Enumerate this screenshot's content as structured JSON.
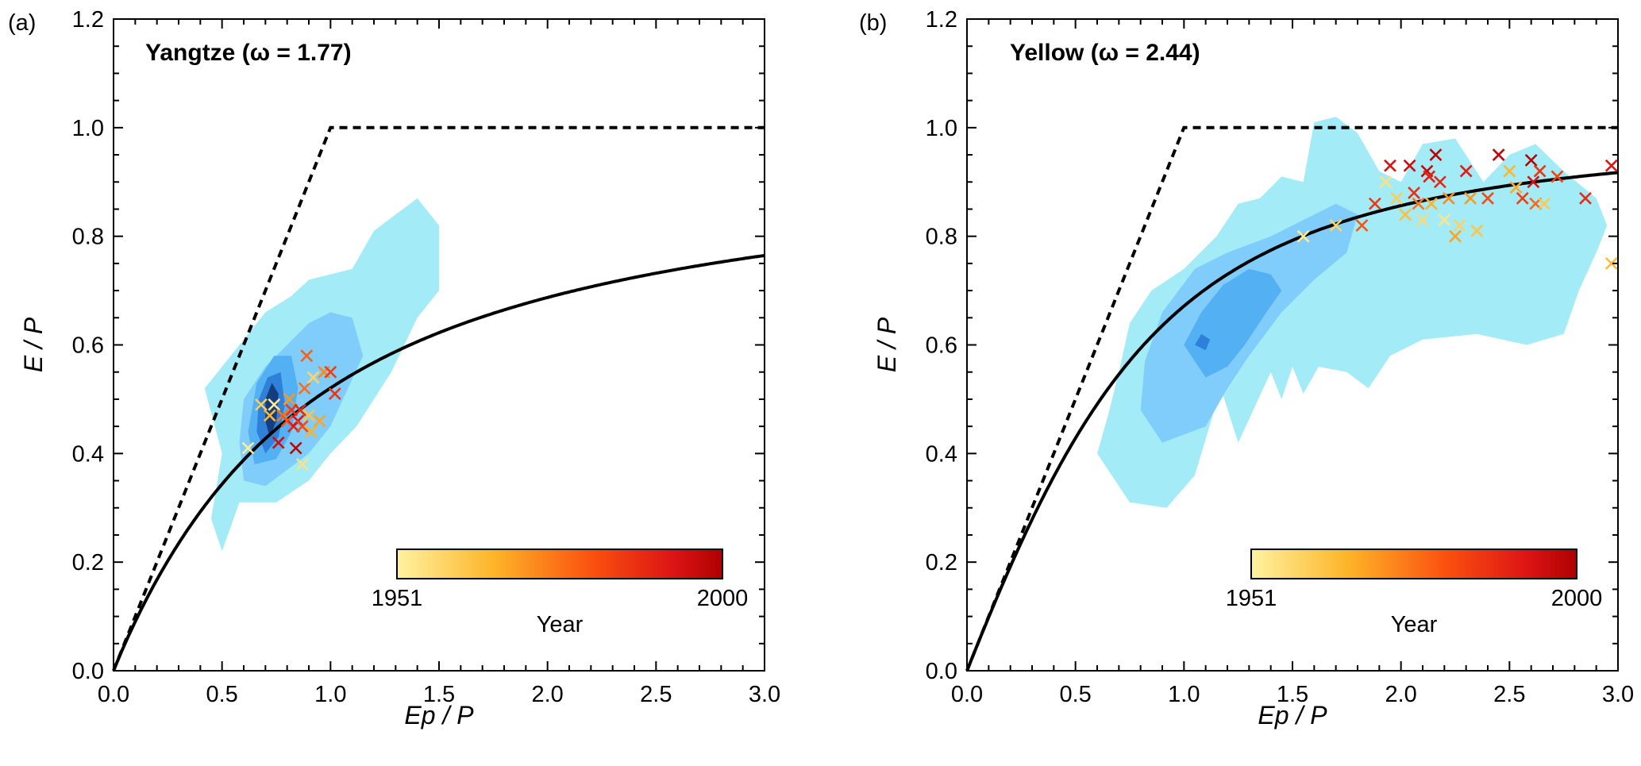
{
  "chart_data": [
    {
      "type": "scatter",
      "panel_label": "(a)",
      "title": "Yangtze (ω = 1.77)",
      "xlabel": "Ep / P",
      "ylabel": "E / P",
      "xlim": [
        0,
        3.0
      ],
      "ylim": [
        0,
        1.2
      ],
      "xticks": [
        "0.0",
        "0.5",
        "1.0",
        "1.5",
        "2.0",
        "2.5",
        "3.0"
      ],
      "yticks": [
        "0.0",
        "0.2",
        "0.4",
        "0.6",
        "0.8",
        "1.0",
        "1.2"
      ],
      "omega": 1.77,
      "colorbar": {
        "label": "Year",
        "min_label": "1951",
        "max_label": "2000",
        "min": 1951,
        "max": 2000
      },
      "density_contours": [
        {
          "level": 1,
          "color": "#a3ecf7",
          "points": [
            [
              0.42,
              0.52
            ],
            [
              0.5,
              0.4
            ],
            [
              0.45,
              0.28
            ],
            [
              0.5,
              0.22
            ],
            [
              0.58,
              0.31
            ],
            [
              0.75,
              0.31
            ],
            [
              0.9,
              0.35
            ],
            [
              1.0,
              0.4
            ],
            [
              1.12,
              0.45
            ],
            [
              1.28,
              0.55
            ],
            [
              1.4,
              0.65
            ],
            [
              1.5,
              0.7
            ],
            [
              1.5,
              0.82
            ],
            [
              1.4,
              0.87
            ],
            [
              1.3,
              0.84
            ],
            [
              1.2,
              0.81
            ],
            [
              1.1,
              0.74
            ],
            [
              0.9,
              0.72
            ],
            [
              0.82,
              0.69
            ],
            [
              0.7,
              0.66
            ],
            [
              0.6,
              0.61
            ],
            [
              0.5,
              0.56
            ]
          ]
        },
        {
          "level": 2,
          "color": "#80ccfa",
          "points": [
            [
              0.58,
              0.42
            ],
            [
              0.6,
              0.35
            ],
            [
              0.7,
              0.34
            ],
            [
              0.8,
              0.37
            ],
            [
              0.9,
              0.4
            ],
            [
              1.0,
              0.45
            ],
            [
              1.08,
              0.52
            ],
            [
              1.15,
              0.58
            ],
            [
              1.1,
              0.65
            ],
            [
              1.0,
              0.66
            ],
            [
              0.9,
              0.64
            ],
            [
              0.8,
              0.6
            ],
            [
              0.7,
              0.56
            ],
            [
              0.6,
              0.5
            ]
          ]
        },
        {
          "level": 3,
          "color": "#53b0f2",
          "points": [
            [
              0.62,
              0.44
            ],
            [
              0.65,
              0.38
            ],
            [
              0.75,
              0.39
            ],
            [
              0.82,
              0.44
            ],
            [
              0.85,
              0.52
            ],
            [
              0.82,
              0.58
            ],
            [
              0.74,
              0.58
            ],
            [
              0.66,
              0.53
            ]
          ]
        },
        {
          "level": 4,
          "color": "#2f80d8",
          "points": [
            [
              0.66,
              0.44
            ],
            [
              0.7,
              0.4
            ],
            [
              0.76,
              0.43
            ],
            [
              0.79,
              0.49
            ],
            [
              0.77,
              0.55
            ],
            [
              0.71,
              0.54
            ],
            [
              0.67,
              0.5
            ]
          ]
        },
        {
          "level": 5,
          "color": "#143d80",
          "points": [
            [
              0.7,
              0.46
            ],
            [
              0.72,
              0.43
            ],
            [
              0.75,
              0.46
            ],
            [
              0.76,
              0.51
            ],
            [
              0.73,
              0.53
            ],
            [
              0.7,
              0.5
            ]
          ]
        }
      ],
      "scatter": [
        {
          "x": 0.62,
          "y": 0.41,
          "year": 1952
        },
        {
          "x": 0.68,
          "y": 0.49,
          "year": 1960
        },
        {
          "x": 0.72,
          "y": 0.47,
          "year": 1965
        },
        {
          "x": 0.74,
          "y": 0.49,
          "year": 1953
        },
        {
          "x": 0.76,
          "y": 0.42,
          "year": 1995
        },
        {
          "x": 0.78,
          "y": 0.47,
          "year": 1975
        },
        {
          "x": 0.8,
          "y": 0.46,
          "year": 1980
        },
        {
          "x": 0.81,
          "y": 0.5,
          "year": 1970
        },
        {
          "x": 0.82,
          "y": 0.48,
          "year": 1985
        },
        {
          "x": 0.83,
          "y": 0.45,
          "year": 1990
        },
        {
          "x": 0.84,
          "y": 0.41,
          "year": 1998
        },
        {
          "x": 0.85,
          "y": 0.46,
          "year": 1993
        },
        {
          "x": 0.86,
          "y": 0.48,
          "year": 1988
        },
        {
          "x": 0.87,
          "y": 0.45,
          "year": 1982
        },
        {
          "x": 0.87,
          "y": 0.38,
          "year": 1955
        },
        {
          "x": 0.88,
          "y": 0.52,
          "year": 1976
        },
        {
          "x": 0.89,
          "y": 0.58,
          "year": 1978
        },
        {
          "x": 0.9,
          "y": 0.47,
          "year": 1962
        },
        {
          "x": 0.91,
          "y": 0.44,
          "year": 1966
        },
        {
          "x": 0.92,
          "y": 0.54,
          "year": 1958
        },
        {
          "x": 0.95,
          "y": 0.46,
          "year": 1968
        },
        {
          "x": 0.97,
          "y": 0.55,
          "year": 1972
        },
        {
          "x": 1.0,
          "y": 0.55,
          "year": 1984
        },
        {
          "x": 1.02,
          "y": 0.51,
          "year": 1986
        }
      ]
    },
    {
      "type": "scatter",
      "panel_label": "(b)",
      "title": "Yellow (ω = 2.44)",
      "xlabel": "Ep / P",
      "ylabel": "E / P",
      "xlim": [
        0,
        3.0
      ],
      "ylim": [
        0,
        1.2
      ],
      "xticks": [
        "0.0",
        "0.5",
        "1.0",
        "1.5",
        "2.0",
        "2.5",
        "3.0"
      ],
      "yticks": [
        "0.0",
        "0.2",
        "0.4",
        "0.6",
        "0.8",
        "1.0",
        "1.2"
      ],
      "omega": 2.44,
      "colorbar": {
        "label": "Year",
        "min_label": "1951",
        "max_label": "2000",
        "min": 1951,
        "max": 2000
      },
      "density_contours": [
        {
          "level": 1,
          "color": "#a3ecf7",
          "points": [
            [
              0.6,
              0.4
            ],
            [
              0.75,
              0.31
            ],
            [
              0.92,
              0.3
            ],
            [
              1.05,
              0.36
            ],
            [
              1.17,
              0.52
            ],
            [
              1.25,
              0.42
            ],
            [
              1.4,
              0.55
            ],
            [
              1.45,
              0.5
            ],
            [
              1.5,
              0.56
            ],
            [
              1.55,
              0.51
            ],
            [
              1.62,
              0.56
            ],
            [
              1.75,
              0.55
            ],
            [
              1.85,
              0.52
            ],
            [
              1.95,
              0.58
            ],
            [
              2.1,
              0.61
            ],
            [
              2.35,
              0.62
            ],
            [
              2.58,
              0.6
            ],
            [
              2.75,
              0.62
            ],
            [
              2.82,
              0.7
            ],
            [
              2.9,
              0.77
            ],
            [
              2.95,
              0.82
            ],
            [
              2.9,
              0.87
            ],
            [
              2.75,
              0.92
            ],
            [
              2.62,
              0.97
            ],
            [
              2.5,
              0.95
            ],
            [
              2.38,
              0.9
            ],
            [
              2.25,
              0.98
            ],
            [
              2.1,
              0.97
            ],
            [
              2.0,
              0.9
            ],
            [
              1.9,
              0.92
            ],
            [
              1.8,
              0.99
            ],
            [
              1.7,
              1.02
            ],
            [
              1.6,
              1.01
            ],
            [
              1.55,
              0.9
            ],
            [
              1.45,
              0.91
            ],
            [
              1.35,
              0.87
            ],
            [
              1.25,
              0.86
            ],
            [
              1.15,
              0.8
            ],
            [
              1.0,
              0.74
            ],
            [
              0.85,
              0.7
            ],
            [
              0.75,
              0.64
            ],
            [
              0.7,
              0.55
            ],
            [
              0.65,
              0.47
            ]
          ]
        },
        {
          "level": 2,
          "color": "#80ccfa",
          "points": [
            [
              0.8,
              0.48
            ],
            [
              0.9,
              0.42
            ],
            [
              1.1,
              0.45
            ],
            [
              1.2,
              0.52
            ],
            [
              1.3,
              0.58
            ],
            [
              1.45,
              0.66
            ],
            [
              1.6,
              0.72
            ],
            [
              1.75,
              0.77
            ],
            [
              1.8,
              0.84
            ],
            [
              1.7,
              0.86
            ],
            [
              1.55,
              0.83
            ],
            [
              1.4,
              0.8
            ],
            [
              1.2,
              0.77
            ],
            [
              1.05,
              0.74
            ],
            [
              0.9,
              0.66
            ],
            [
              0.82,
              0.57
            ]
          ]
        },
        {
          "level": 3,
          "color": "#53b0f2",
          "points": [
            [
              1.0,
              0.6
            ],
            [
              1.1,
              0.54
            ],
            [
              1.2,
              0.56
            ],
            [
              1.28,
              0.6
            ],
            [
              1.38,
              0.66
            ],
            [
              1.45,
              0.7
            ],
            [
              1.4,
              0.73
            ],
            [
              1.3,
              0.74
            ],
            [
              1.18,
              0.71
            ],
            [
              1.08,
              0.66
            ]
          ]
        },
        {
          "level": 4,
          "color": "#2f80d8",
          "points": [
            [
              1.05,
              0.6
            ],
            [
              1.1,
              0.59
            ],
            [
              1.12,
              0.61
            ],
            [
              1.08,
              0.62
            ]
          ]
        }
      ],
      "scatter": [
        {
          "x": 1.55,
          "y": 0.8,
          "year": 1953
        },
        {
          "x": 1.7,
          "y": 0.82,
          "year": 1958
        },
        {
          "x": 1.82,
          "y": 0.82,
          "year": 1980
        },
        {
          "x": 1.88,
          "y": 0.86,
          "year": 1985
        },
        {
          "x": 1.93,
          "y": 0.9,
          "year": 1955
        },
        {
          "x": 1.95,
          "y": 0.93,
          "year": 1993
        },
        {
          "x": 1.98,
          "y": 0.87,
          "year": 1960
        },
        {
          "x": 2.02,
          "y": 0.84,
          "year": 1963
        },
        {
          "x": 2.04,
          "y": 0.93,
          "year": 1995
        },
        {
          "x": 2.06,
          "y": 0.88,
          "year": 1987
        },
        {
          "x": 2.08,
          "y": 0.86,
          "year": 1975
        },
        {
          "x": 2.1,
          "y": 0.83,
          "year": 1957
        },
        {
          "x": 2.12,
          "y": 0.92,
          "year": 1996
        },
        {
          "x": 2.13,
          "y": 0.91,
          "year": 1990
        },
        {
          "x": 2.14,
          "y": 0.86,
          "year": 1966
        },
        {
          "x": 2.16,
          "y": 0.95,
          "year": 1998
        },
        {
          "x": 2.18,
          "y": 0.9,
          "year": 1989
        },
        {
          "x": 2.2,
          "y": 0.83,
          "year": 1954
        },
        {
          "x": 2.22,
          "y": 0.87,
          "year": 1972
        },
        {
          "x": 2.25,
          "y": 0.8,
          "year": 1968
        },
        {
          "x": 2.27,
          "y": 0.82,
          "year": 1959
        },
        {
          "x": 2.3,
          "y": 0.92,
          "year": 1991
        },
        {
          "x": 2.32,
          "y": 0.87,
          "year": 1970
        },
        {
          "x": 2.35,
          "y": 0.81,
          "year": 1962
        },
        {
          "x": 2.4,
          "y": 0.87,
          "year": 1982
        },
        {
          "x": 2.45,
          "y": 0.95,
          "year": 1997
        },
        {
          "x": 2.5,
          "y": 0.92,
          "year": 1965
        },
        {
          "x": 2.53,
          "y": 0.89,
          "year": 1967
        },
        {
          "x": 2.56,
          "y": 0.87,
          "year": 1984
        },
        {
          "x": 2.6,
          "y": 0.94,
          "year": 1999
        },
        {
          "x": 2.61,
          "y": 0.9,
          "year": 1994
        },
        {
          "x": 2.62,
          "y": 0.86,
          "year": 1977
        },
        {
          "x": 2.64,
          "y": 0.92,
          "year": 1986
        },
        {
          "x": 2.66,
          "y": 0.86,
          "year": 1961
        },
        {
          "x": 2.72,
          "y": 0.91,
          "year": 1983
        },
        {
          "x": 2.85,
          "y": 0.87,
          "year": 1988
        },
        {
          "x": 2.97,
          "y": 0.93,
          "year": 1992
        },
        {
          "x": 2.97,
          "y": 0.75,
          "year": 1964
        }
      ]
    }
  ]
}
